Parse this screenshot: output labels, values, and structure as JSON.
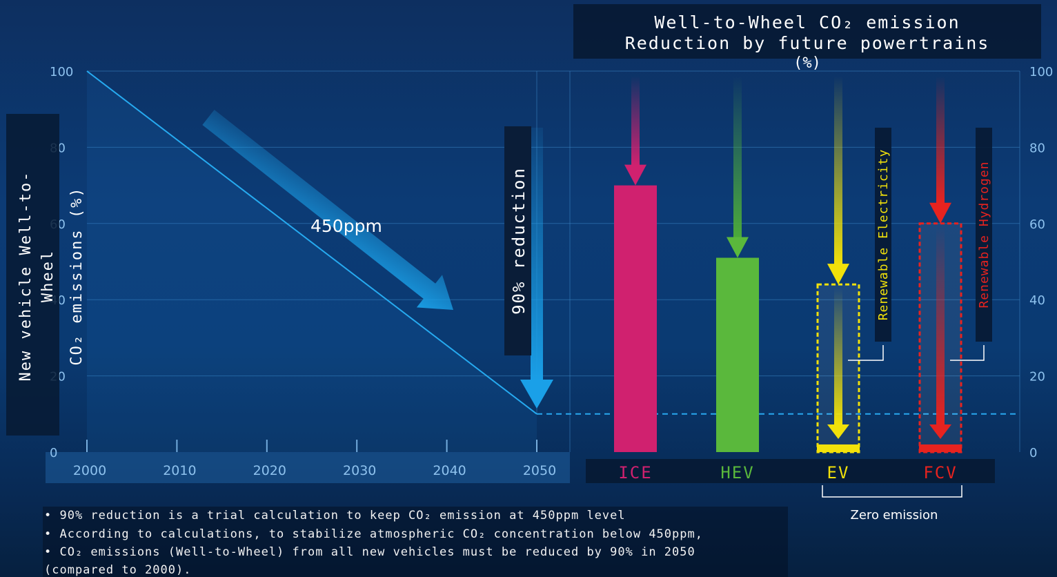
{
  "chart_data": [
    {
      "type": "line",
      "x": [
        2000,
        2050
      ],
      "series": [
        {
          "values": [
            100,
            10
          ]
        }
      ],
      "xticks": [
        "2000",
        "2010",
        "2020",
        "2030",
        "2040",
        "2050"
      ],
      "yticks": [
        "0",
        "20",
        "40",
        "60",
        "80",
        "100"
      ],
      "ylabel": "New vehicle Well-to-Wheel CO₂ emissions (%)",
      "ylim": [
        0,
        100
      ],
      "annotations": {
        "trend": "450ppm",
        "target": "90% reduction"
      },
      "grid": true
    },
    {
      "type": "bar",
      "title": "Well-to-Wheel CO₂ emission Reduction by future powertrains",
      "unit": "(%)",
      "categories": [
        "ICE",
        "HEV",
        "EV",
        "FCV"
      ],
      "values": [
        70,
        51,
        2,
        2
      ],
      "upstream_values": [
        null,
        null,
        44,
        60
      ],
      "colors": {
        "ICE": "#d0216f",
        "HEV": "#5ab83c",
        "EV": "#f2e10a",
        "FCV": "#e7231f"
      },
      "labels": {
        "EV": "Renewable Electricity",
        "FCV": "Renewable Hydrogen"
      },
      "bracket": "Zero emission",
      "yticks": [
        "0",
        "20",
        "40",
        "60",
        "80",
        "100"
      ],
      "ylim": [
        0,
        100
      ]
    }
  ],
  "notes": [
    "• 90% reduction is a trial calculation to keep CO₂ emission at 450ppm level",
    "• According to calculations, to stabilize atmospheric CO₂ concentration below 450ppm,",
    "• CO₂ emissions (Well-to-Wheel) from all new vehicles must be reduced by 90% in 2050",
    "(compared to 2000)."
  ]
}
